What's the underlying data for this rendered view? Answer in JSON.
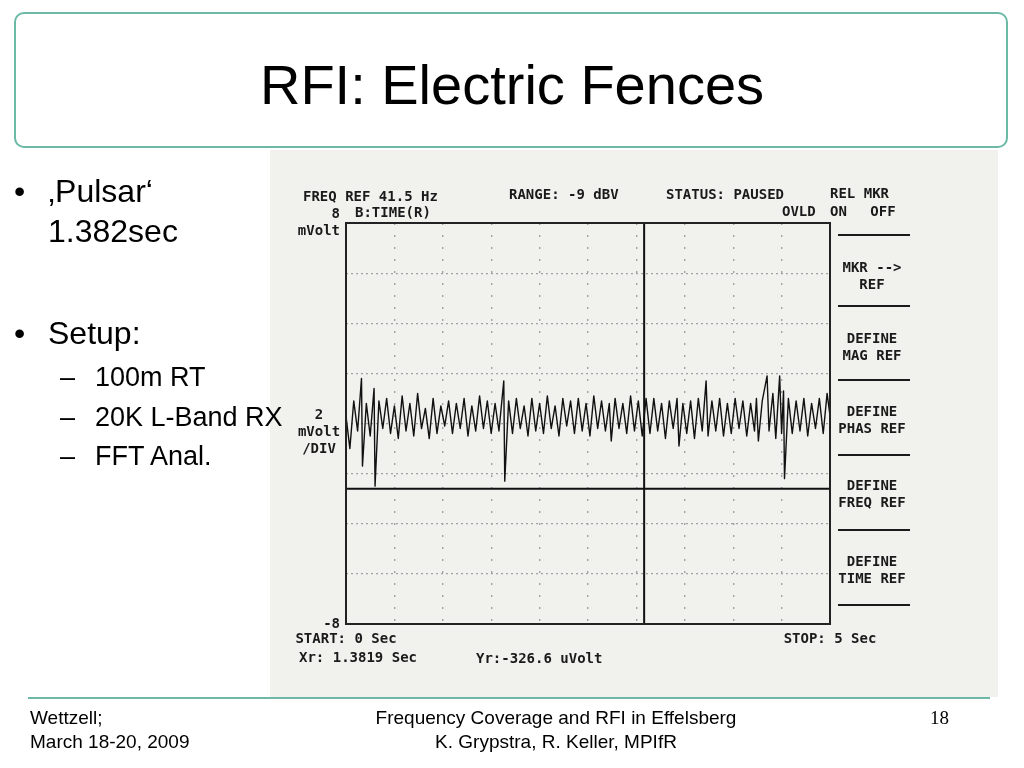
{
  "chart_data": {
    "type": "line",
    "title": "RFI: Electric Fences",
    "ylabel": "2 mVolt /DIV",
    "color": "#111111",
    "marker": "none",
    "line_style": "solid",
    "grid": true,
    "legend": false,
    "xlim": [
      0,
      5
    ],
    "xticks": [
      {
        "value": 0,
        "label": "START: 0 Sec"
      },
      {
        "value": 0.5,
        "label": null
      },
      {
        "value": 1,
        "label": null
      },
      {
        "value": 1.5,
        "label": null
      },
      {
        "value": 2,
        "label": null
      },
      {
        "value": 2.5,
        "label": null
      },
      {
        "value": 3,
        "label": null
      },
      {
        "value": 3.5,
        "label": null
      },
      {
        "value": 4,
        "label": null
      },
      {
        "value": 4.5,
        "label": null
      },
      {
        "value": 5,
        "label": "STOP: 5 Sec"
      }
    ],
    "ylim": [
      -8,
      8
    ],
    "yticks": [
      -8,
      {
        "value": -6,
        "label": null
      },
      {
        "value": -4,
        "label": null
      },
      {
        "value": -2,
        "label": null
      },
      {
        "value": 0,
        "label": null
      },
      {
        "value": 2,
        "label": null
      },
      {
        "value": 4,
        "label": null
      },
      {
        "value": 6,
        "label": null
      },
      {
        "value": 8,
        "label": "8 mVolt"
      }
    ],
    "x": [
      0,
      0.04,
      0.08,
      0.12,
      0.16,
      0.17,
      0.21,
      0.25,
      0.29,
      0.3,
      0.34,
      0.38,
      0.42,
      0.46,
      0.5,
      0.54,
      0.58,
      0.62,
      0.66,
      0.7,
      0.74,
      0.78,
      0.82,
      0.86,
      0.9,
      0.94,
      0.98,
      1.02,
      1.06,
      1.1,
      1.14,
      1.18,
      1.22,
      1.26,
      1.3,
      1.34,
      1.38,
      1.42,
      1.46,
      1.5,
      1.54,
      1.58,
      1.63,
      1.64,
      1.68,
      1.72,
      1.76,
      1.8,
      1.84,
      1.88,
      1.92,
      1.96,
      2,
      2.04,
      2.08,
      2.12,
      2.16,
      2.2,
      2.24,
      2.28,
      2.32,
      2.36,
      2.4,
      2.44,
      2.48,
      2.52,
      2.56,
      2.6,
      2.64,
      2.68,
      2.72,
      2.74,
      2.78,
      2.82,
      2.86,
      2.9,
      2.94,
      2.98,
      3.02,
      3.06,
      3.1,
      3.14,
      3.18,
      3.22,
      3.26,
      3.3,
      3.34,
      3.38,
      3.42,
      3.44,
      3.48,
      3.52,
      3.56,
      3.6,
      3.64,
      3.68,
      3.72,
      3.74,
      3.78,
      3.82,
      3.86,
      3.9,
      3.94,
      3.98,
      4.02,
      4.06,
      4.1,
      4.14,
      4.18,
      4.22,
      4.24,
      4.26,
      4.3,
      4.35,
      4.37,
      4.41,
      4.44,
      4.48,
      4.5,
      4.52,
      4.53,
      4.57,
      4.61,
      4.65,
      4.69,
      4.73,
      4.77,
      4.81,
      4.85,
      4.89,
      4.93,
      4.97,
      5
    ],
    "values": [
      0.3,
      -1.0,
      0.9,
      -0.3,
      1.8,
      -1.7,
      0.8,
      -0.5,
      1.4,
      -2.5,
      0.9,
      -0.2,
      1.0,
      -0.4,
      0.7,
      -0.6,
      1.1,
      -0.3,
      0.8,
      -0.5,
      1.2,
      -0.2,
      0.6,
      -0.6,
      1.0,
      -0.4,
      0.7,
      -0.1,
      0.9,
      -0.4,
      0.8,
      -0.2,
      1.0,
      -0.5,
      0.7,
      -0.3,
      1.1,
      -0.2,
      0.9,
      -0.4,
      0.8,
      -0.3,
      1.7,
      -2.3,
      0.9,
      -0.4,
      1.0,
      -0.2,
      0.7,
      -0.5,
      1.0,
      -0.3,
      0.8,
      -0.4,
      1.1,
      -0.2,
      0.7,
      -0.5,
      1.0,
      -0.1,
      0.9,
      -0.4,
      1.0,
      -0.3,
      0.8,
      -0.5,
      1.1,
      -0.2,
      0.9,
      -0.3,
      0.8,
      -0.7,
      1.0,
      -0.2,
      0.8,
      -0.4,
      1.1,
      -0.3,
      0.9,
      -0.5,
      1.0,
      -0.4,
      1.0,
      -0.3,
      0.8,
      -0.6,
      0.9,
      -0.2,
      1.0,
      -0.9,
      0.8,
      -0.4,
      0.9,
      -0.6,
      1.0,
      -0.3,
      1.7,
      -0.5,
      0.9,
      -0.3,
      1.0,
      -0.5,
      0.8,
      -0.4,
      1.0,
      -0.2,
      0.9,
      -0.5,
      0.8,
      -0.3,
      1.0,
      -0.7,
      0.9,
      1.9,
      -0.3,
      1.2,
      -0.6,
      1.9,
      -0.4,
      1.3,
      -2.2,
      1.0,
      -0.4,
      0.9,
      -0.3,
      1.0,
      -0.5,
      0.8,
      -0.2,
      1.0,
      -0.4,
      1.2,
      0.3
    ],
    "ref_lines": [
      {
        "axis": "x",
        "value": 3.08,
        "color": "#111111"
      },
      {
        "axis": "y",
        "value": -2.6,
        "color": "#111111"
      }
    ],
    "annotations": [
      "• ‚Pulsar‘ 1.382sec",
      "• Setup:",
      "– 100m RT",
      "– 20K L-Band RX",
      "– FFT Anal.",
      "FREQ REF 41.5 Hz",
      "B:TIME(R)",
      "RANGE: -9 dBV",
      "STATUS: PAUSED",
      "OVLD",
      "REL MKR",
      "ON OFF",
      "MKR --> REF",
      "DEFINE MAG REF",
      "DEFINE PHAS REF",
      "DEFINE FREQ REF",
      "DEFINE TIME REF",
      "Xr: 1.3819 Sec",
      "Yr:-326.6 uVolt",
      "Wettzell;",
      "March 18-20, 2009",
      "Frequency Coverage and RFI in Effelsberg",
      "K. Grypstra, R. Keller, MPIfR",
      "18"
    ]
  }
}
